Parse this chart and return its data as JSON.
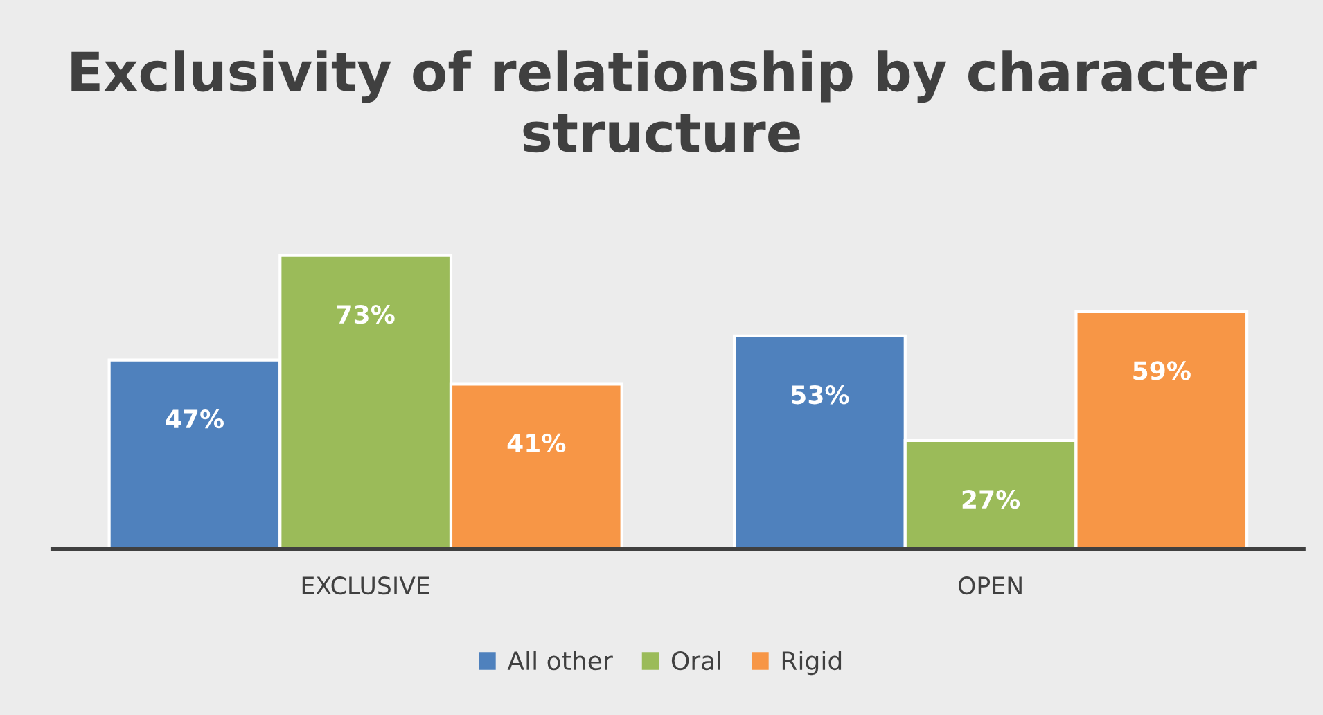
{
  "chart_data": {
    "type": "bar",
    "title": "Exclusivity of relationship by character structure",
    "categories": [
      "EXCLUSIVE",
      "OPEN"
    ],
    "series": [
      {
        "name": "All other",
        "color": "#4f81bd",
        "values": [
          47,
          53
        ],
        "value_labels": [
          "47%",
          "53%"
        ]
      },
      {
        "name": "Oral",
        "color": "#9bbb59",
        "values": [
          73,
          27
        ],
        "value_labels": [
          "73%",
          "27%"
        ]
      },
      {
        "name": "Rigid",
        "color": "#f79646",
        "values": [
          41,
          59
        ],
        "value_labels": [
          "41%",
          "59%"
        ]
      }
    ],
    "legend": "bottom",
    "grid": false
  }
}
